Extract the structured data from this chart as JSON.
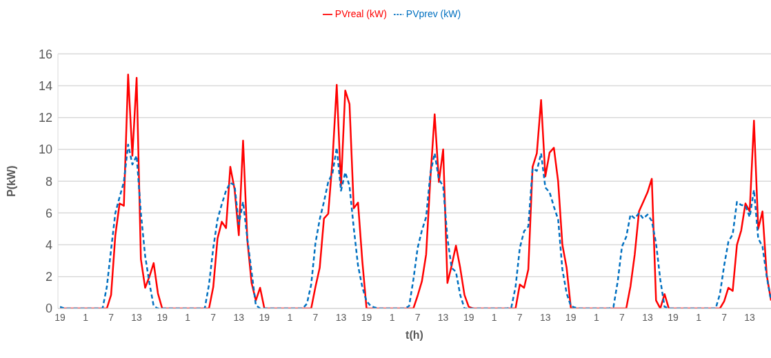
{
  "chart_data": {
    "type": "line",
    "xlabel": "t(h)",
    "ylabel": "P(kW)",
    "categories": [
      "19",
      null,
      null,
      null,
      null,
      null,
      "1",
      null,
      null,
      null,
      null,
      null,
      "7",
      null,
      null,
      null,
      null,
      null,
      "13",
      null,
      null,
      null,
      null,
      null,
      "19",
      null,
      null,
      null,
      null,
      null,
      "1",
      null,
      null,
      null,
      null,
      null,
      "7",
      null,
      null,
      null,
      null,
      null,
      "13",
      null,
      null,
      null,
      null,
      null,
      "19",
      null,
      null,
      null,
      null,
      null,
      "1",
      null,
      null,
      null,
      null,
      null,
      "7",
      null,
      null,
      null,
      null,
      null,
      "13",
      null,
      null,
      null,
      null,
      null,
      "19",
      null,
      null,
      null,
      null,
      null,
      "1",
      null,
      null,
      null,
      null,
      null,
      "7",
      null,
      null,
      null,
      null,
      null,
      "13",
      null,
      null,
      null,
      null,
      null,
      "19",
      null,
      null,
      null,
      null,
      null,
      "1",
      null,
      null,
      null,
      null,
      null,
      "7",
      null,
      null,
      null,
      null,
      null,
      "13",
      null,
      null,
      null,
      null,
      null,
      "19",
      null,
      null,
      null,
      null,
      null,
      "1",
      null,
      null,
      null,
      null,
      null,
      "7",
      null,
      null,
      null,
      null,
      null,
      "13",
      null,
      null,
      null,
      null,
      null,
      "19",
      null,
      null,
      null,
      null,
      null,
      "1",
      null,
      null,
      null,
      null,
      null,
      "7",
      null,
      null,
      null,
      null,
      null,
      "13",
      null,
      null,
      null,
      null,
      null
    ],
    "series": [
      {
        "name": "PVreal (kW)",
        "color": "#ff0000",
        "line_style": "solid",
        "values": [
          0,
          0,
          0,
          0,
          0,
          0,
          0,
          0,
          0,
          0,
          0,
          0,
          0.85,
          4.6,
          6.6,
          6.45,
          14.7,
          9.6,
          14.5,
          3.1,
          1.3,
          2.0,
          2.85,
          0.95,
          0,
          0,
          0,
          0,
          0,
          0,
          0,
          0,
          0,
          0,
          0,
          0,
          1.35,
          4.4,
          5.45,
          5.05,
          8.9,
          7.5,
          4.6,
          10.55,
          4.3,
          1.6,
          0.5,
          1.3,
          0,
          0,
          0,
          0,
          0,
          0,
          0,
          0,
          0,
          0,
          0,
          0,
          1.35,
          2.55,
          5.65,
          5.95,
          9.3,
          14.05,
          7.7,
          13.7,
          12.85,
          6.3,
          6.65,
          3.0,
          0,
          0,
          0,
          0,
          0,
          0,
          0,
          0,
          0,
          0,
          0,
          0,
          0.8,
          1.7,
          3.4,
          8.2,
          12.2,
          7.95,
          10.0,
          1.6,
          2.7,
          3.95,
          2.55,
          0.85,
          0.1,
          0,
          0,
          0,
          0,
          0,
          0,
          0,
          0,
          0,
          0,
          0,
          1.5,
          1.3,
          2.45,
          8.9,
          9.75,
          13.1,
          8.3,
          9.8,
          10.1,
          8.0,
          4.0,
          2.55,
          0,
          0,
          0,
          0,
          0,
          0,
          0,
          0,
          0,
          0,
          0,
          0,
          0,
          0,
          1.4,
          3.4,
          6.1,
          6.7,
          7.3,
          8.15,
          0.5,
          0,
          0.9,
          0,
          0,
          0,
          0,
          0,
          0,
          0,
          0,
          0,
          0,
          0,
          0,
          0,
          0.45,
          1.3,
          1.1,
          4.0,
          4.9,
          6.6,
          6.1,
          11.8,
          5.0,
          6.1,
          2.1,
          0.5
        ]
      },
      {
        "name": "PVprev (kW)",
        "color": "#0070c0",
        "line_style": "dashed",
        "values": [
          0.1,
          0,
          0,
          0,
          0,
          0,
          0,
          0,
          0,
          0,
          0,
          1.35,
          3.7,
          6.0,
          7.0,
          7.95,
          10.3,
          9.05,
          9.6,
          6.0,
          3.3,
          1.6,
          0.15,
          0,
          0,
          0,
          0,
          0,
          0,
          0,
          0,
          0,
          0,
          0,
          0,
          1.5,
          3.8,
          5.6,
          6.55,
          7.4,
          7.9,
          7.75,
          5.3,
          6.7,
          4.4,
          2.3,
          0.2,
          0,
          0,
          0,
          0,
          0,
          0,
          0,
          0,
          0,
          0,
          0,
          0.3,
          1.5,
          4.1,
          5.6,
          6.7,
          7.95,
          8.5,
          10.1,
          7.4,
          8.55,
          7.7,
          5.05,
          2.7,
          1.35,
          0.45,
          0.15,
          0.05,
          0,
          0,
          0,
          0,
          0,
          0,
          0,
          0.15,
          1.8,
          3.8,
          4.9,
          5.75,
          8.5,
          9.75,
          8.1,
          7.7,
          4.4,
          2.55,
          2.3,
          0.85,
          0,
          0,
          0,
          0,
          0,
          0,
          0,
          0,
          0,
          0,
          0,
          0.05,
          1.35,
          3.8,
          4.85,
          5.15,
          8.8,
          8.65,
          9.75,
          7.6,
          7.3,
          6.4,
          5.6,
          2.45,
          0.95,
          0.15,
          0.05,
          0,
          0,
          0,
          0,
          0,
          0,
          0,
          0,
          0.1,
          1.7,
          3.9,
          4.5,
          5.9,
          5.65,
          6.0,
          5.65,
          5.9,
          5.5,
          4.1,
          1.8,
          0.1,
          0,
          0,
          0,
          0,
          0,
          0,
          0,
          0,
          0,
          0,
          0,
          0,
          0.9,
          2.7,
          4.2,
          4.65,
          6.7,
          6.5,
          6.45,
          5.75,
          7.45,
          4.4,
          3.9,
          2.0,
          0.5
        ]
      }
    ],
    "ylim": [
      0,
      16
    ],
    "yticks": [
      0,
      2,
      4,
      6,
      8,
      10,
      12,
      14,
      16
    ],
    "grid": "y",
    "legend": "top",
    "marker": "none"
  }
}
